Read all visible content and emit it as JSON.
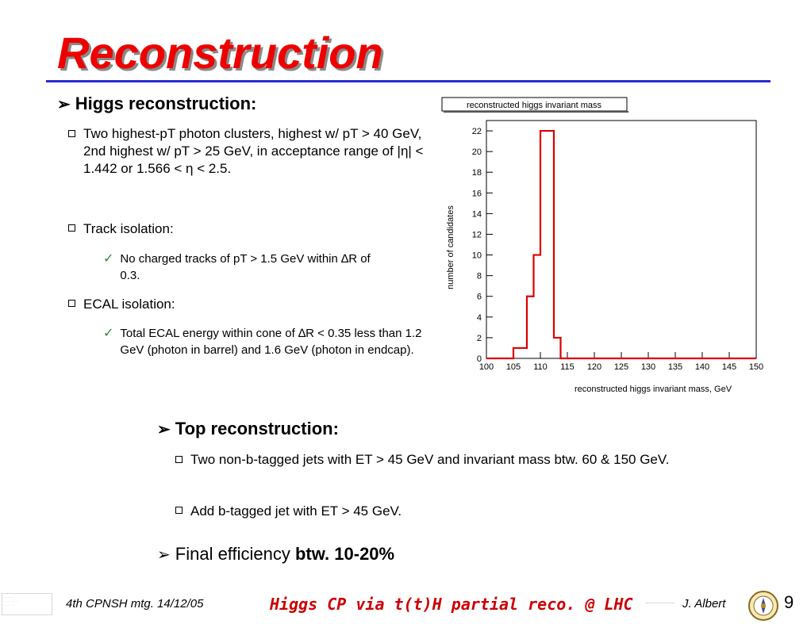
{
  "slide": {
    "title": "Reconstruction",
    "page_number": "9"
  },
  "higgs": {
    "heading": "Higgs reconstruction:",
    "bullets": [
      "Two highest-pT photon clusters, highest w/ pT > 40 GeV, 2nd highest  w/ pT > 25 GeV, in acceptance range  of |η| < 1.442 or 1.566 < η < 2.5.",
      "Track isolation:",
      "ECAL isolation:"
    ],
    "track_check": "No charged tracks of pT > 1.5 GeV within ∆R of 0.3.",
    "ecal_check": "Total ECAL energy within cone of ∆R < 0.35 less than 1.2 GeV (photon in barrel) and 1.6 GeV (photon in endcap)."
  },
  "top": {
    "heading": "Top reconstruction:",
    "bullet1": "Two non-b-tagged jets with ET > 45 GeV and invariant mass btw. 60 & 150 GeV.",
    "bullet2": "Add b-tagged jet with ET > 45 GeV."
  },
  "final": {
    "prefix": "Final efficiency ",
    "bold": "btw. 10-20%"
  },
  "footer": {
    "meeting": "4th CPNSH mtg.  14/12/05",
    "talk_title": "Higgs CP via t(t)H partial reco. @ LHC",
    "author": "J. Albert"
  },
  "colors": {
    "title": "#ee0000",
    "rule": "#2b2bd0",
    "histogram": "#dd0000"
  },
  "icons": [
    "arrow-bullet-icon",
    "square-bullet-icon",
    "checkmark-icon",
    "university-seal-icon"
  ],
  "chart_data": {
    "type": "histogram",
    "title": "reconstructed higgs invariant mass",
    "xlabel": "reconstructed higgs invariant mass, GeV",
    "ylabel": "number of candidates",
    "xlim": [
      100,
      150
    ],
    "ylim": [
      0,
      23
    ],
    "x_ticks": [
      100,
      105,
      110,
      115,
      120,
      125,
      130,
      135,
      140,
      145,
      150
    ],
    "y_ticks": [
      0,
      2,
      4,
      6,
      8,
      10,
      12,
      14,
      16,
      18,
      20,
      22
    ],
    "bins": [
      {
        "x0": 100,
        "x1": 105,
        "y": 0
      },
      {
        "x0": 105,
        "x1": 107.5,
        "y": 1
      },
      {
        "x0": 107.5,
        "x1": 108.75,
        "y": 6
      },
      {
        "x0": 108.75,
        "x1": 110,
        "y": 10
      },
      {
        "x0": 110,
        "x1": 112.5,
        "y": 22
      },
      {
        "x0": 112.5,
        "x1": 113.75,
        "y": 2
      },
      {
        "x0": 113.75,
        "x1": 150,
        "y": 0
      }
    ],
    "grid": false,
    "legend": "none"
  }
}
